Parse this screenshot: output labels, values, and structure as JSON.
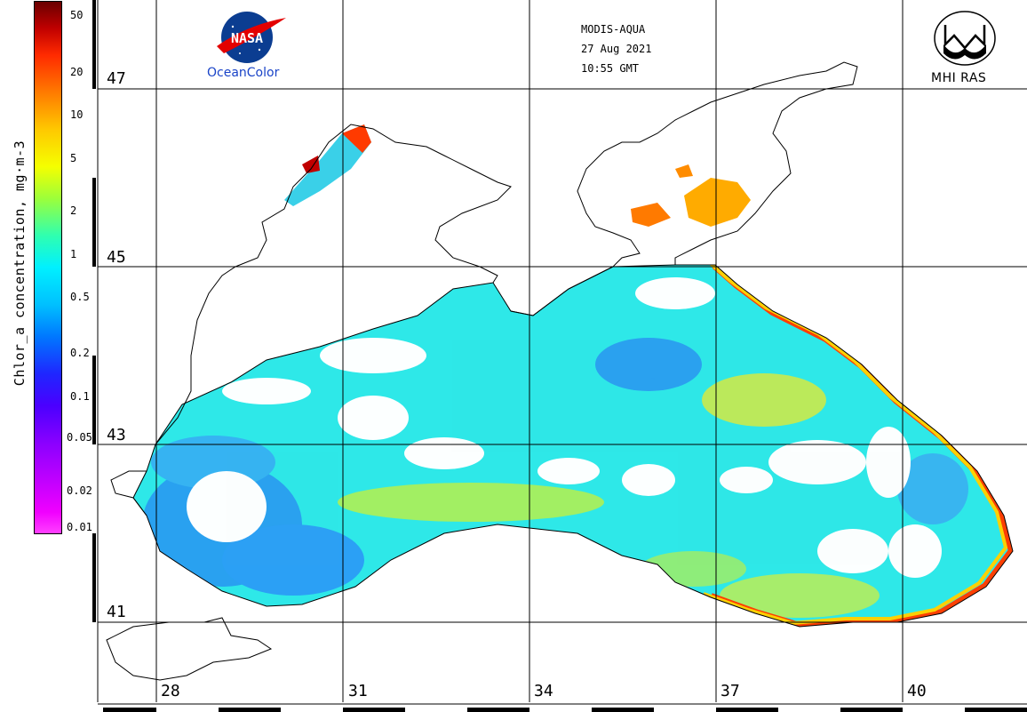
{
  "colorbar": {
    "title": "Chlor_a concentration, mg·m-3",
    "labels": [
      "50",
      "20",
      "10",
      "5",
      "2",
      "1",
      "0.5",
      "0.2",
      "0.1",
      "0.05",
      "0.02",
      "0.01"
    ]
  },
  "header": {
    "sensor": "MODIS-AQUA",
    "date": "27 Aug 2021",
    "time": "10:55 GMT"
  },
  "logos": {
    "nasa_text": "NASA",
    "oceancolor_text": "OceanColor",
    "mhi_text": "MHI RAS"
  },
  "grid": {
    "lat_labels": [
      "47",
      "45",
      "43",
      "41"
    ],
    "lon_labels": [
      "28",
      "31",
      "34",
      "37",
      "40"
    ]
  }
}
